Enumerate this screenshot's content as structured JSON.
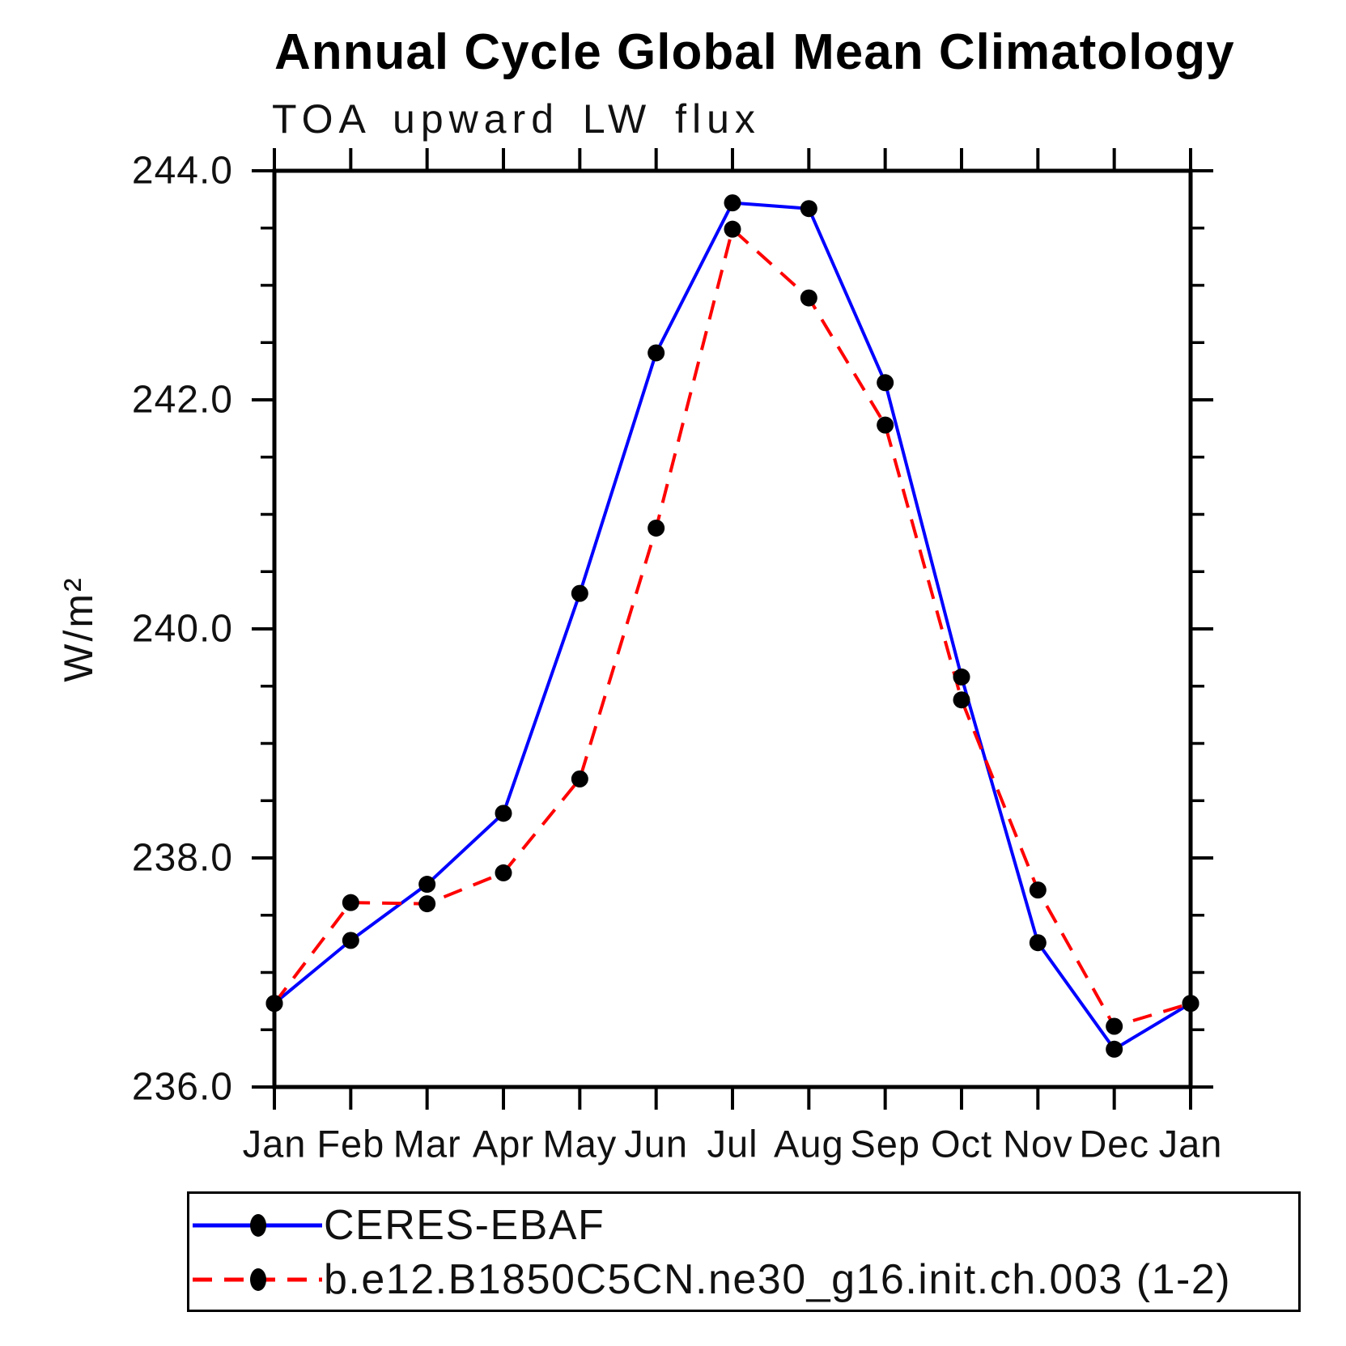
{
  "chart_data": {
    "type": "line",
    "title": "Annual Cycle Global Mean Climatology",
    "subtitle": "TOA upward LW flux",
    "ylabel": "W/m²",
    "xlabel": "",
    "categories": [
      "Jan",
      "Feb",
      "Mar",
      "Apr",
      "May",
      "Jun",
      "Jul",
      "Aug",
      "Sep",
      "Oct",
      "Nov",
      "Dec",
      "Jan"
    ],
    "ylim": [
      236.0,
      244.0
    ],
    "y_major_ticks": [
      "236.0",
      "238.0",
      "240.0",
      "242.0",
      "244.0"
    ],
    "y_minor_step": 0.5,
    "grid": false,
    "legend_position": "bottom",
    "series": [
      {
        "name": "CERES-EBAF",
        "color": "#0000ff",
        "line_style": "solid",
        "marker": "filled-circle",
        "marker_color": "#000000",
        "values": [
          236.73,
          237.28,
          237.77,
          238.39,
          240.31,
          242.41,
          243.72,
          243.67,
          242.15,
          239.58,
          237.26,
          236.33,
          236.73
        ]
      },
      {
        "name": "b.e12.B1850C5CN.ne30_g16.init.ch.003 (1-2)",
        "color": "#ff0000",
        "line_style": "dashed",
        "marker": "filled-circle",
        "marker_color": "#000000",
        "values": [
          236.73,
          237.61,
          237.6,
          237.87,
          238.69,
          240.88,
          243.49,
          242.89,
          241.78,
          239.38,
          237.72,
          236.53,
          236.73
        ]
      }
    ]
  }
}
